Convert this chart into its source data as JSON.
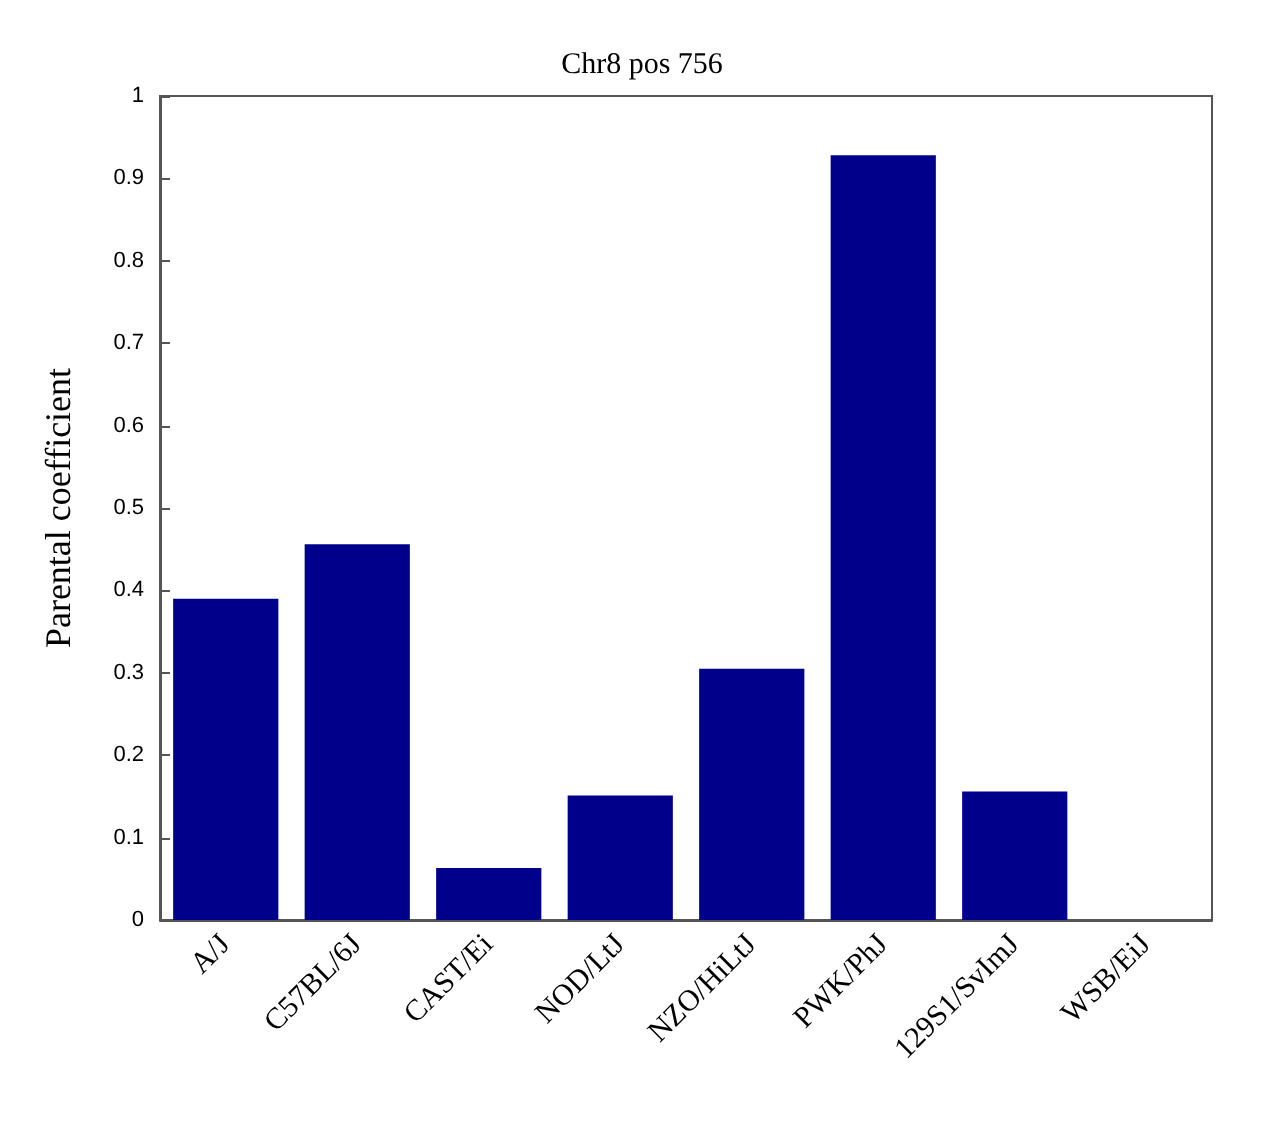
{
  "chart_data": {
    "type": "bar",
    "title": "Chr8 pos 756",
    "ylabel": "Parental coefficient",
    "categories": [
      "A/J",
      "C57BL/6J",
      "CAST/Ei",
      "NOD/LtJ",
      "NZO/HiLtJ",
      "PWK/PhJ",
      "129S1/SvImJ",
      "WSB/EiJ"
    ],
    "values": [
      0.39,
      0.456,
      0.063,
      0.151,
      0.305,
      0.928,
      0.156,
      0
    ],
    "color": "#00008b",
    "ylim": [
      0,
      1
    ],
    "yticks": [
      0,
      0.1,
      0.2,
      0.3,
      0.4,
      0.5,
      0.6,
      0.7,
      0.8,
      0.9,
      1
    ],
    "grid": false
  }
}
